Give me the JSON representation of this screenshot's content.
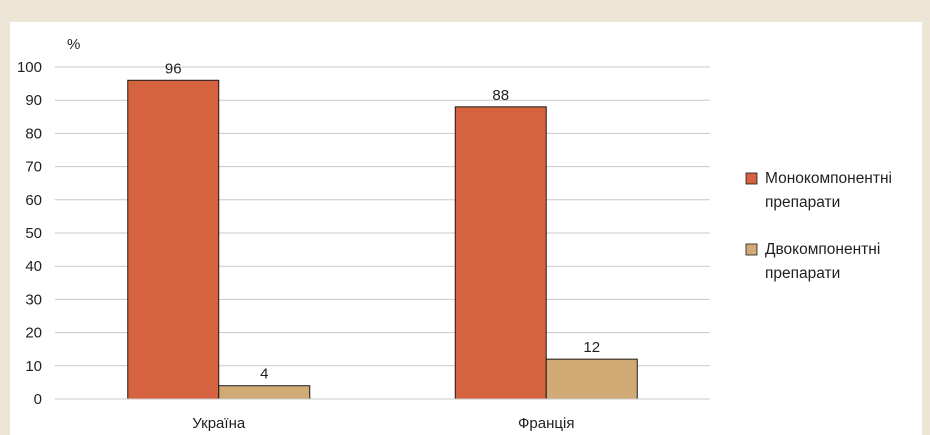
{
  "chart_data": {
    "type": "bar",
    "ylabel": "%",
    "ylim": [
      0,
      100
    ],
    "yticks": [
      0,
      10,
      20,
      30,
      40,
      50,
      60,
      70,
      80,
      90,
      100
    ],
    "grid": true,
    "legend_position": "right",
    "categories": [
      "Україна",
      "Франція"
    ],
    "series": [
      {
        "name_lines": [
          "Монокомпонентні",
          "препарати"
        ],
        "values": [
          96,
          88
        ],
        "color": "#d6633f"
      },
      {
        "name_lines": [
          "Двокомпонентні",
          "препарати"
        ],
        "values": [
          4,
          12
        ],
        "color": "#d2aa76"
      }
    ]
  },
  "colors": {
    "frame": "#ece4d4",
    "background": "#ffffff",
    "gridline": "#c8c8c8",
    "bar_outline": "#1a1a1a"
  }
}
